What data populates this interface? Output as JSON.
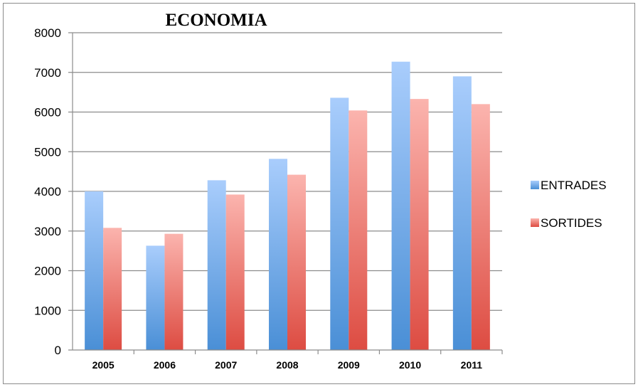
{
  "chart_data": {
    "type": "bar",
    "title": "ECONOMIA",
    "xlabel": "",
    "ylabel": "",
    "categories": [
      "2005",
      "2006",
      "2007",
      "2008",
      "2009",
      "2010",
      "2011"
    ],
    "series": [
      {
        "name": "ENTRADES",
        "values": [
          4000,
          2630,
          4280,
          4820,
          6360,
          7270,
          6900
        ],
        "color": "#5b9bd5"
      },
      {
        "name": "SORTIDES",
        "values": [
          3080,
          2930,
          3920,
          4420,
          6040,
          6330,
          6200
        ],
        "color": "#e0524a"
      }
    ],
    "ylim": [
      0,
      8000
    ],
    "yticks": [
      "0",
      "1000",
      "2000",
      "3000",
      "4000",
      "5000",
      "6000",
      "7000",
      "8000"
    ],
    "grid": true,
    "legend_position": "right"
  }
}
